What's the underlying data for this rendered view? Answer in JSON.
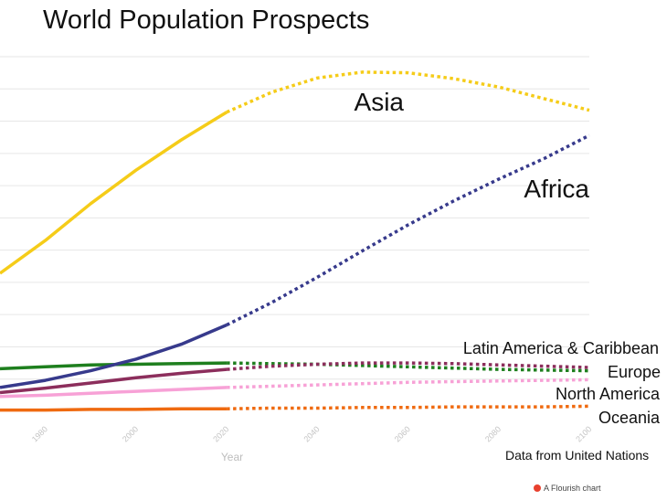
{
  "chart_data": {
    "type": "line",
    "title": "World Population Prospects",
    "xlabel": "Year",
    "ylabel": "",
    "source": "Data from United Nations",
    "credit": "A Flourish chart",
    "xlim": [
      1970,
      2100
    ],
    "ylim": [
      0,
      5.5
    ],
    "x_ticks": [
      "1980",
      "2000",
      "2020",
      "2040",
      "2060",
      "2080",
      "2100"
    ],
    "projection_start": 2020,
    "grid": true,
    "series": [
      {
        "name": "Asia",
        "color": "#f5cc19",
        "x": [
          1970,
          1980,
          1990,
          2000,
          2010,
          2020,
          2030,
          2040,
          2050,
          2060,
          2070,
          2080,
          2090,
          2100
        ],
        "y": [
          2.14,
          2.65,
          3.22,
          3.74,
          4.21,
          4.64,
          4.95,
          5.17,
          5.26,
          5.25,
          5.16,
          5.03,
          4.85,
          4.67
        ]
      },
      {
        "name": "Africa",
        "color": "#373a8c",
        "x": [
          1970,
          1980,
          1990,
          2000,
          2010,
          2020,
          2030,
          2040,
          2050,
          2060,
          2070,
          2080,
          2090,
          2100
        ],
        "y": [
          0.37,
          0.48,
          0.63,
          0.81,
          1.04,
          1.34,
          1.69,
          2.08,
          2.49,
          2.89,
          3.26,
          3.6,
          3.92,
          4.28
        ]
      },
      {
        "name": "Latin America & Caribbean",
        "color": "#8c2e5c",
        "x": [
          1970,
          1980,
          1990,
          2000,
          2010,
          2020,
          2030,
          2040,
          2050,
          2060,
          2070,
          2080,
          2090,
          2100
        ],
        "y": [
          0.29,
          0.36,
          0.44,
          0.52,
          0.59,
          0.65,
          0.7,
          0.73,
          0.75,
          0.75,
          0.74,
          0.72,
          0.7,
          0.68
        ]
      },
      {
        "name": "Europe",
        "color": "#1e7f1e",
        "x": [
          1970,
          1980,
          1990,
          2000,
          2010,
          2020,
          2030,
          2040,
          2050,
          2060,
          2070,
          2080,
          2090,
          2100
        ],
        "y": [
          0.66,
          0.69,
          0.72,
          0.73,
          0.74,
          0.75,
          0.74,
          0.73,
          0.71,
          0.69,
          0.67,
          0.65,
          0.64,
          0.63
        ]
      },
      {
        "name": "North America",
        "color": "#f7a1d6",
        "x": [
          1970,
          1980,
          1990,
          2000,
          2010,
          2020,
          2030,
          2040,
          2050,
          2060,
          2070,
          2080,
          2090,
          2100
        ],
        "y": [
          0.23,
          0.25,
          0.28,
          0.31,
          0.34,
          0.37,
          0.39,
          0.41,
          0.43,
          0.45,
          0.46,
          0.47,
          0.48,
          0.49
        ]
      },
      {
        "name": "Oceania",
        "color": "#ef6a10",
        "x": [
          1970,
          1980,
          1990,
          2000,
          2010,
          2020,
          2030,
          2040,
          2050,
          2060,
          2070,
          2080,
          2090,
          2100
        ],
        "y": [
          0.02,
          0.02,
          0.03,
          0.03,
          0.04,
          0.04,
          0.05,
          0.05,
          0.06,
          0.06,
          0.07,
          0.07,
          0.07,
          0.08
        ]
      }
    ]
  }
}
